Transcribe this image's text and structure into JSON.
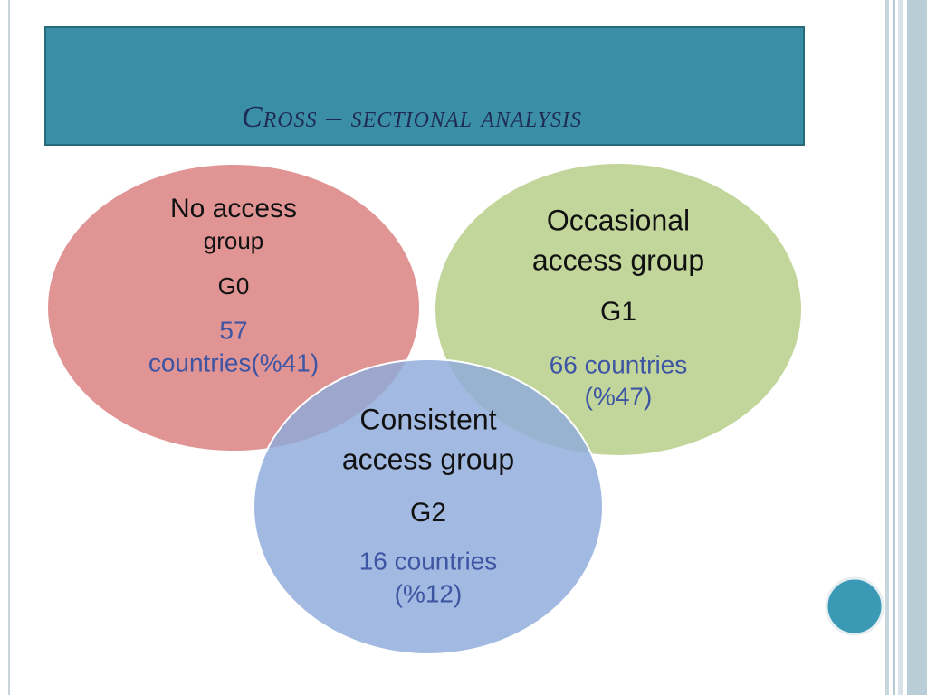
{
  "header": {
    "title": "Cross – sectional analysis"
  },
  "groups": [
    {
      "name": [
        "No access",
        "group"
      ],
      "code": "G0",
      "count": [
        "57",
        "countries(%41)"
      ]
    },
    {
      "name": [
        "Occasional",
        "access group"
      ],
      "code": "G1",
      "count": [
        "66 countries",
        "(%47)"
      ]
    },
    {
      "name": [
        "Consistent",
        "access group"
      ],
      "code": "G2",
      "count": [
        "16 countries",
        "(%12)"
      ]
    }
  ]
}
